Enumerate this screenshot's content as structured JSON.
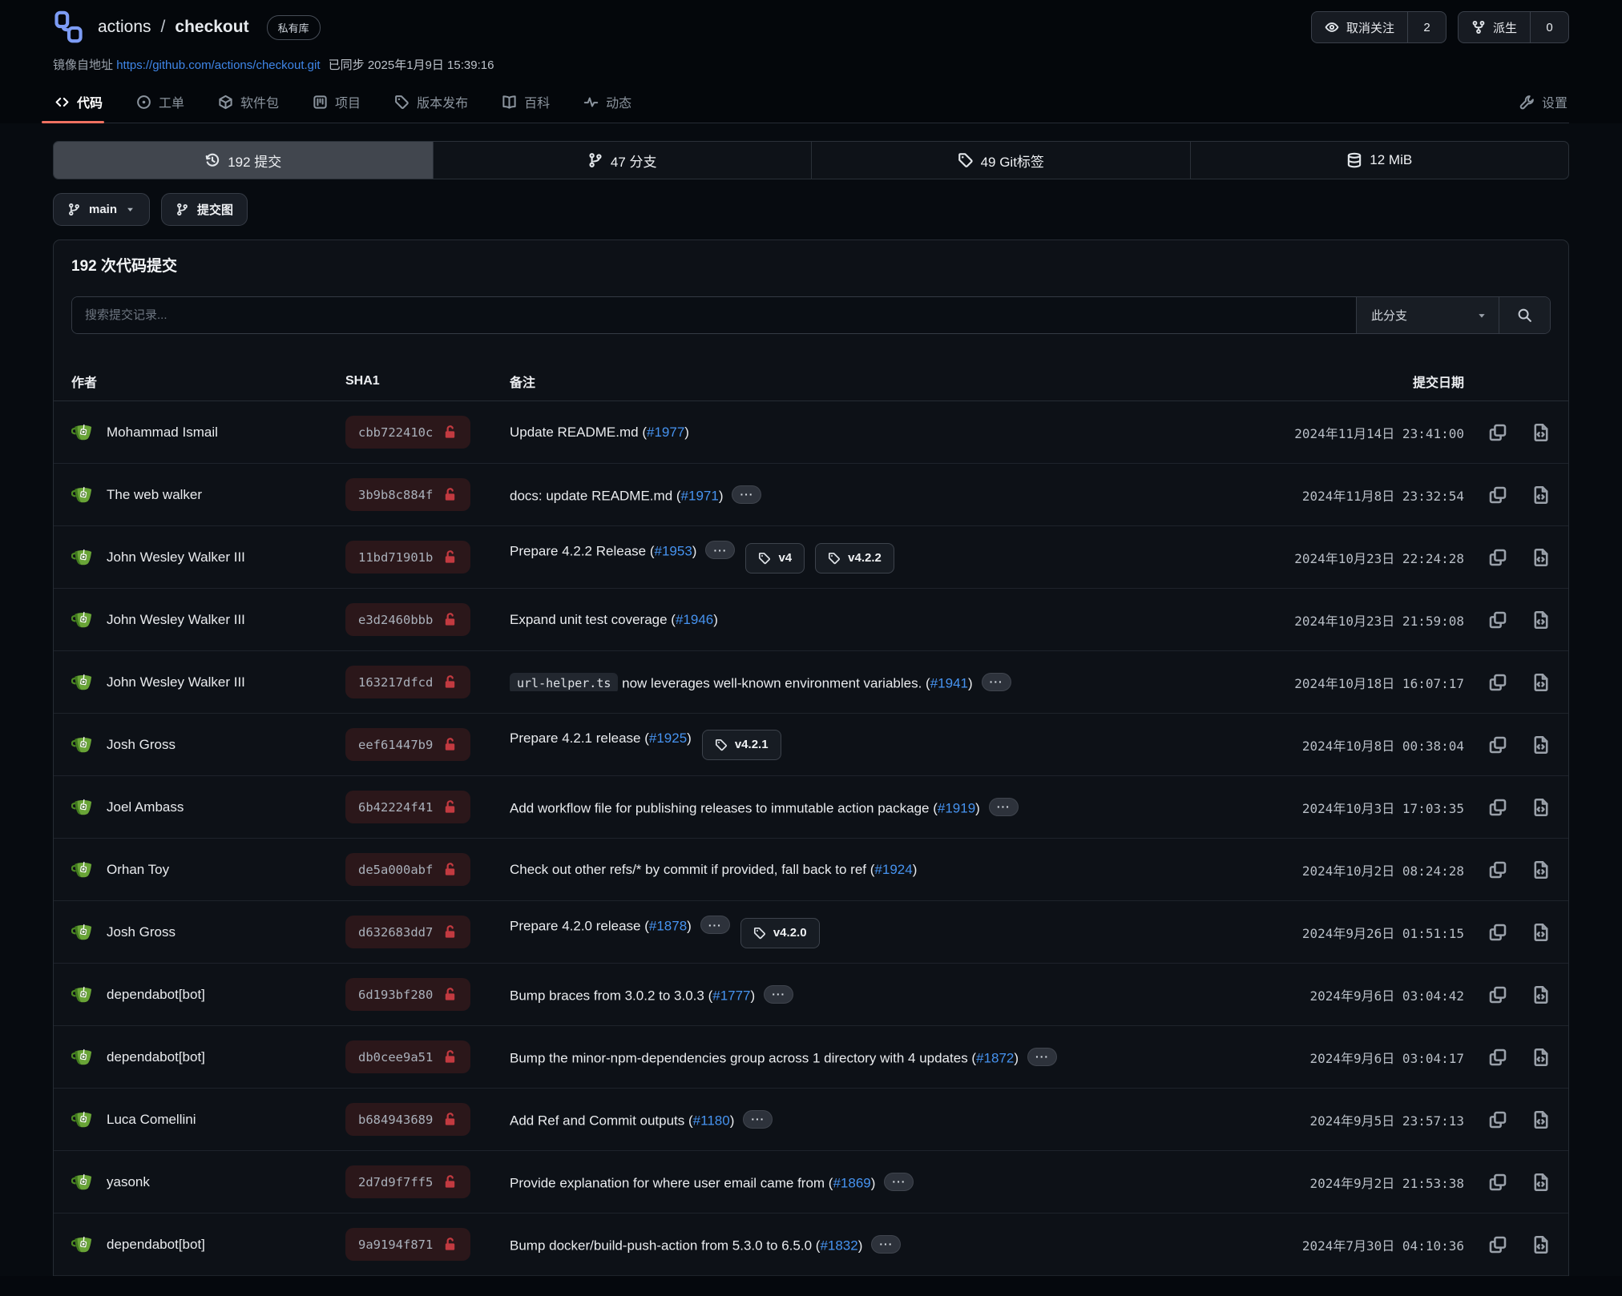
{
  "header": {
    "owner": "actions",
    "separator": "/",
    "repo": "checkout",
    "badge": "私有库",
    "watch": {
      "label": "取消关注",
      "count": "2"
    },
    "fork": {
      "label": "派生",
      "count": "0"
    },
    "mirror": {
      "prefix": "镜像自地址",
      "url": "https://github.com/actions/checkout.git",
      "synced": "已同步 2025年1月9日 15:39:16"
    }
  },
  "tabs": [
    {
      "name": "code",
      "icon": "code-icon",
      "label": "代码",
      "active": true
    },
    {
      "name": "issues",
      "icon": "issue-icon",
      "label": "工单",
      "active": false
    },
    {
      "name": "packages",
      "icon": "package-icon",
      "label": "软件包",
      "active": false
    },
    {
      "name": "projects",
      "icon": "project-icon",
      "label": "项目",
      "active": false
    },
    {
      "name": "releases",
      "icon": "tag-icon",
      "label": "版本发布",
      "active": false
    },
    {
      "name": "wiki",
      "icon": "book-icon",
      "label": "百科",
      "active": false
    },
    {
      "name": "activity",
      "icon": "pulse-icon",
      "label": "动态",
      "active": false
    }
  ],
  "settings_tab": {
    "label": "设置"
  },
  "summary": [
    {
      "name": "commits",
      "icon": "history-icon",
      "label": "192 提交",
      "active": true
    },
    {
      "name": "branches",
      "icon": "branch-icon",
      "label": "47 分支",
      "active": false
    },
    {
      "name": "tags",
      "icon": "tag-icon",
      "label": "49 Git标签",
      "active": false
    },
    {
      "name": "size",
      "icon": "database-icon",
      "label": "12 MiB",
      "active": false
    }
  ],
  "toolbar": {
    "branch_button": "main",
    "graph_button": "提交图"
  },
  "commits_panel": {
    "heading": "192 次代码提交",
    "search_placeholder": "搜索提交记录...",
    "branch_filter": "此分支",
    "columns": {
      "author": "作者",
      "sha": "SHA1",
      "message": "备注",
      "date": "提交日期"
    }
  },
  "ui": {
    "ellipsis": "···"
  },
  "colors": {
    "accent_underline": "#ef7160",
    "issue_link": "#4693f0",
    "lock_red": "#c23a40",
    "avatar_green": "#69a437",
    "logo_blue": "#7d9cf5"
  },
  "commits": [
    {
      "author": "Mohammad Ismail",
      "sha": "cbb722410c",
      "date": "2024年11月14日 23:41:00",
      "segments": [
        {
          "type": "text",
          "value": "Update README.md ("
        },
        {
          "type": "link",
          "value": "#1977"
        },
        {
          "type": "text",
          "value": ")"
        }
      ]
    },
    {
      "author": "The web walker",
      "sha": "3b9b8c884f",
      "date": "2024年11月8日 23:32:54",
      "segments": [
        {
          "type": "text",
          "value": "docs: update README.md ("
        },
        {
          "type": "link",
          "value": "#1971"
        },
        {
          "type": "text",
          "value": ")"
        },
        {
          "type": "ellipsis"
        }
      ]
    },
    {
      "author": "John Wesley Walker III",
      "sha": "11bd71901b",
      "date": "2024年10月23日 22:24:28",
      "segments": [
        {
          "type": "text",
          "value": "Prepare 4.2.2 Release ("
        },
        {
          "type": "link",
          "value": "#1953"
        },
        {
          "type": "text",
          "value": ")"
        },
        {
          "type": "ellipsis"
        },
        {
          "type": "tag",
          "value": "v4"
        },
        {
          "type": "tag",
          "value": "v4.2.2"
        }
      ]
    },
    {
      "author": "John Wesley Walker III",
      "sha": "e3d2460bbb",
      "date": "2024年10月23日 21:59:08",
      "segments": [
        {
          "type": "text",
          "value": "Expand unit test coverage ("
        },
        {
          "type": "link",
          "value": "#1946"
        },
        {
          "type": "text",
          "value": ")"
        }
      ]
    },
    {
      "author": "John Wesley Walker III",
      "sha": "163217dfcd",
      "date": "2024年10月18日 16:07:17",
      "segments": [
        {
          "type": "code",
          "value": "url-helper.ts"
        },
        {
          "type": "text",
          "value": " now leverages well-known environment variables. ("
        },
        {
          "type": "link",
          "value": "#1941"
        },
        {
          "type": "text",
          "value": ")"
        },
        {
          "type": "ellipsis"
        }
      ]
    },
    {
      "author": "Josh Gross",
      "sha": "eef61447b9",
      "date": "2024年10月8日 00:38:04",
      "segments": [
        {
          "type": "text",
          "value": "Prepare 4.2.1 release ("
        },
        {
          "type": "link",
          "value": "#1925"
        },
        {
          "type": "text",
          "value": ")"
        },
        {
          "type": "tag",
          "value": "v4.2.1"
        }
      ]
    },
    {
      "author": "Joel Ambass",
      "sha": "6b42224f41",
      "date": "2024年10月3日 17:03:35",
      "segments": [
        {
          "type": "text",
          "value": "Add workflow file for publishing releases to immutable action package ("
        },
        {
          "type": "link",
          "value": "#1919"
        },
        {
          "type": "text",
          "value": ")"
        },
        {
          "type": "ellipsis"
        }
      ]
    },
    {
      "author": "Orhan Toy",
      "sha": "de5a000abf",
      "date": "2024年10月2日 08:24:28",
      "segments": [
        {
          "type": "text",
          "value": "Check out other refs/* by commit if provided, fall back to ref ("
        },
        {
          "type": "link",
          "value": "#1924"
        },
        {
          "type": "text",
          "value": ")"
        }
      ]
    },
    {
      "author": "Josh Gross",
      "sha": "d632683dd7",
      "date": "2024年9月26日 01:51:15",
      "segments": [
        {
          "type": "text",
          "value": "Prepare 4.2.0 release ("
        },
        {
          "type": "link",
          "value": "#1878"
        },
        {
          "type": "text",
          "value": ")"
        },
        {
          "type": "ellipsis"
        },
        {
          "type": "tag",
          "value": "v4.2.0"
        }
      ]
    },
    {
      "author": "dependabot[bot]",
      "sha": "6d193bf280",
      "date": "2024年9月6日 03:04:42",
      "segments": [
        {
          "type": "text",
          "value": "Bump braces from 3.0.2 to 3.0.3 ("
        },
        {
          "type": "link",
          "value": "#1777"
        },
        {
          "type": "text",
          "value": ")"
        },
        {
          "type": "ellipsis"
        }
      ]
    },
    {
      "author": "dependabot[bot]",
      "sha": "db0cee9a51",
      "date": "2024年9月6日 03:04:17",
      "segments": [
        {
          "type": "text",
          "value": "Bump the minor-npm-dependencies group across 1 directory with 4 updates ("
        },
        {
          "type": "link",
          "value": "#1872"
        },
        {
          "type": "text",
          "value": ")"
        },
        {
          "type": "ellipsis"
        }
      ]
    },
    {
      "author": "Luca Comellini",
      "sha": "b684943689",
      "date": "2024年9月5日 23:57:13",
      "segments": [
        {
          "type": "text",
          "value": "Add Ref and Commit outputs ("
        },
        {
          "type": "link",
          "value": "#1180"
        },
        {
          "type": "text",
          "value": ")"
        },
        {
          "type": "ellipsis"
        }
      ]
    },
    {
      "author": "yasonk",
      "sha": "2d7d9f7ff5",
      "date": "2024年9月2日 21:53:38",
      "segments": [
        {
          "type": "text",
          "value": "Provide explanation for where user email came from ("
        },
        {
          "type": "link",
          "value": "#1869"
        },
        {
          "type": "text",
          "value": ")"
        },
        {
          "type": "ellipsis"
        }
      ]
    },
    {
      "author": "dependabot[bot]",
      "sha": "9a9194f871",
      "date": "2024年7月30日 04:10:36",
      "segments": [
        {
          "type": "text",
          "value": "Bump docker/build-push-action from 5.3.0 to 6.5.0 ("
        },
        {
          "type": "link",
          "value": "#1832"
        },
        {
          "type": "text",
          "value": ")"
        },
        {
          "type": "ellipsis"
        }
      ]
    }
  ]
}
